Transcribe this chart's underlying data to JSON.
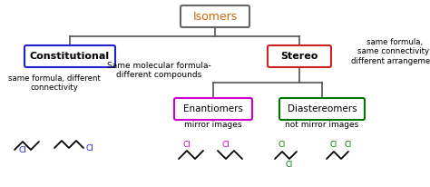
{
  "bg_color": "#ffffff",
  "title": "Isomers",
  "title_color": "#cc6600",
  "title_box_color": "#666666",
  "constitutional_label": "Constitutional",
  "constitutional_box_color": "#2222cc",
  "stereo_label": "Stereo",
  "stereo_box_color": "#cc2222",
  "enantiomers_label": "Enantiomers",
  "enantiomers_box_color": "#cc00cc",
  "diastereomers_label": "Diastereomers",
  "diastereomers_box_color": "#007700",
  "middle_text": "Same molecular formula-\ndifferent compounds",
  "right_text": "same formula,\nsame connectivity,\ndifferent arrangement",
  "left_bottom_text": "same formula, different\nconnectivity",
  "mirror_images_text": "mirror images",
  "not_mirror_text": "not mirror images",
  "line_color": "#555555",
  "mol_color_blue": "#2222cc",
  "mol_color_magenta": "#cc00cc",
  "mol_color_green": "#007700"
}
